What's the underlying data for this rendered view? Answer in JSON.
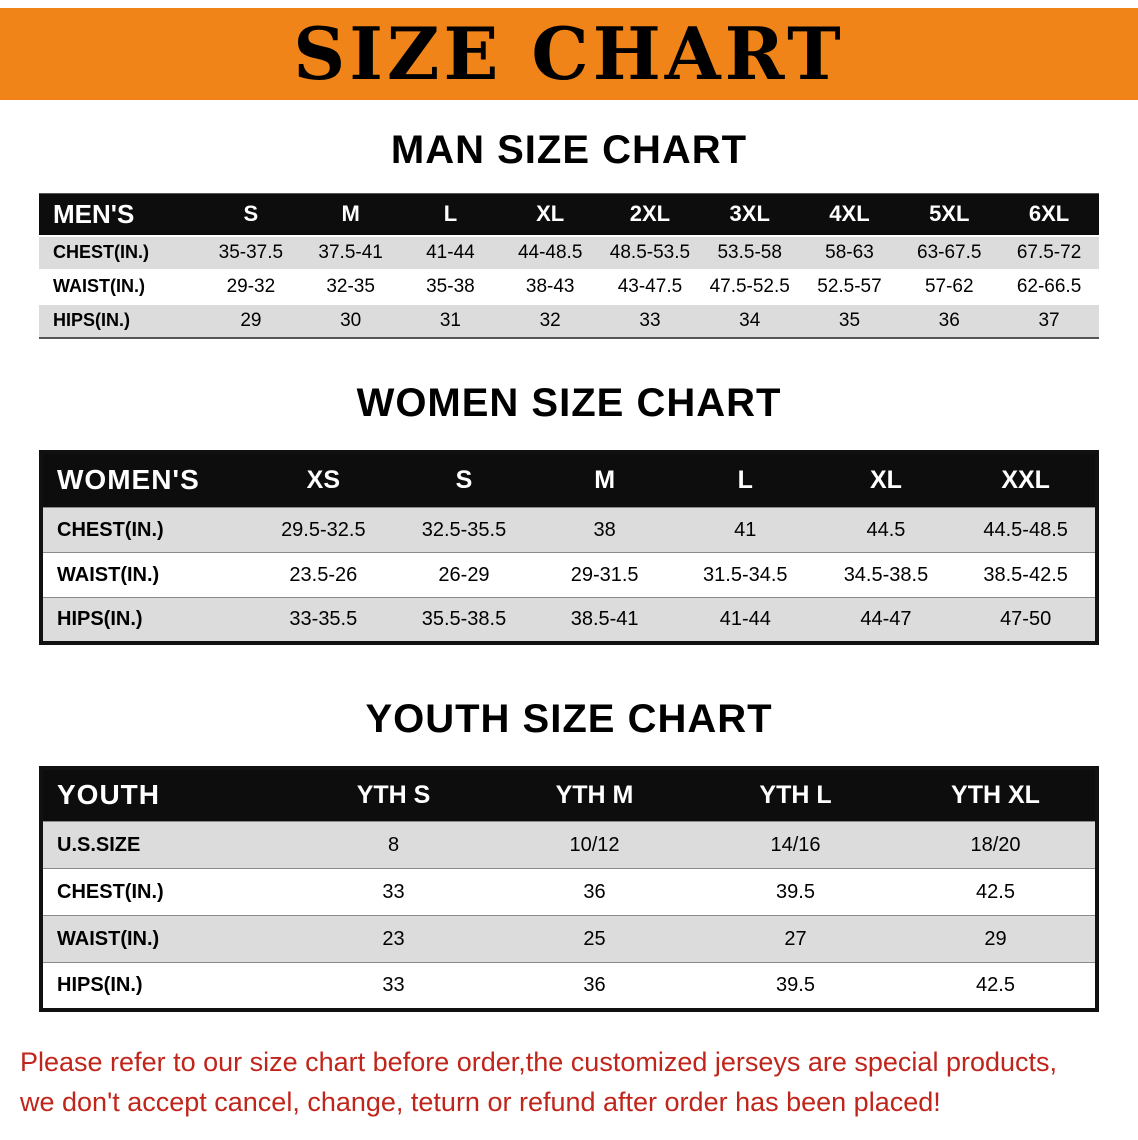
{
  "banner": {
    "title": "SIZE CHART"
  },
  "sections": {
    "men": {
      "heading": "MAN SIZE CHART",
      "table": {
        "corner_label": "MEN'S",
        "columns": [
          "S",
          "M",
          "L",
          "XL",
          "2XL",
          "3XL",
          "4XL",
          "5XL",
          "6XL"
        ],
        "rows": [
          {
            "label": "CHEST(IN.)",
            "values": [
              "35-37.5",
              "37.5-41",
              "41-44",
              "44-48.5",
              "48.5-53.5",
              "53.5-58",
              "58-63",
              "63-67.5",
              "67.5-72"
            ]
          },
          {
            "label": "WAIST(IN.)",
            "values": [
              "29-32",
              "32-35",
              "35-38",
              "38-43",
              "43-47.5",
              "47.5-52.5",
              "52.5-57",
              "57-62",
              "62-66.5"
            ]
          },
          {
            "label": "HIPS(IN.)",
            "values": [
              "29",
              "30",
              "31",
              "32",
              "33",
              "34",
              "35",
              "36",
              "37"
            ]
          }
        ]
      }
    },
    "women": {
      "heading": "WOMEN SIZE CHART",
      "table": {
        "corner_label": "WOMEN'S",
        "columns": [
          "XS",
          "S",
          "M",
          "L",
          "XL",
          "XXL"
        ],
        "rows": [
          {
            "label": "CHEST(IN.)",
            "values": [
              "29.5-32.5",
              "32.5-35.5",
              "38",
              "41",
              "44.5",
              "44.5-48.5"
            ]
          },
          {
            "label": "WAIST(IN.)",
            "values": [
              "23.5-26",
              "26-29",
              "29-31.5",
              "31.5-34.5",
              "34.5-38.5",
              "38.5-42.5"
            ]
          },
          {
            "label": "HIPS(IN.)",
            "values": [
              "33-35.5",
              "35.5-38.5",
              "38.5-41",
              "41-44",
              "44-47",
              "47-50"
            ]
          }
        ]
      }
    },
    "youth": {
      "heading": "YOUTH SIZE CHART",
      "table": {
        "corner_label": "YOUTH",
        "columns": [
          "YTH S",
          "YTH M",
          "YTH L",
          "YTH XL"
        ],
        "rows": [
          {
            "label": "U.S.SIZE",
            "values": [
              "8",
              "10/12",
              "14/16",
              "18/20"
            ]
          },
          {
            "label": "CHEST(IN.)",
            "values": [
              "33",
              "36",
              "39.5",
              "42.5"
            ]
          },
          {
            "label": "WAIST(IN.)",
            "values": [
              "23",
              "25",
              "27",
              "29"
            ]
          },
          {
            "label": "HIPS(IN.)",
            "values": [
              "33",
              "36",
              "39.5",
              "42.5"
            ]
          }
        ]
      }
    }
  },
  "footer": {
    "line1": "Please refer to our size chart before order,the customized jerseys are special products,",
    "line2": "we don't accept cancel, change, teturn or refund after order has been placed!"
  },
  "colors": {
    "banner_bg": "#F08419",
    "table_header_bg": "#0d0d0d",
    "row_alt_bg": "#DCDCDC",
    "footer_text": "#C0251C"
  }
}
